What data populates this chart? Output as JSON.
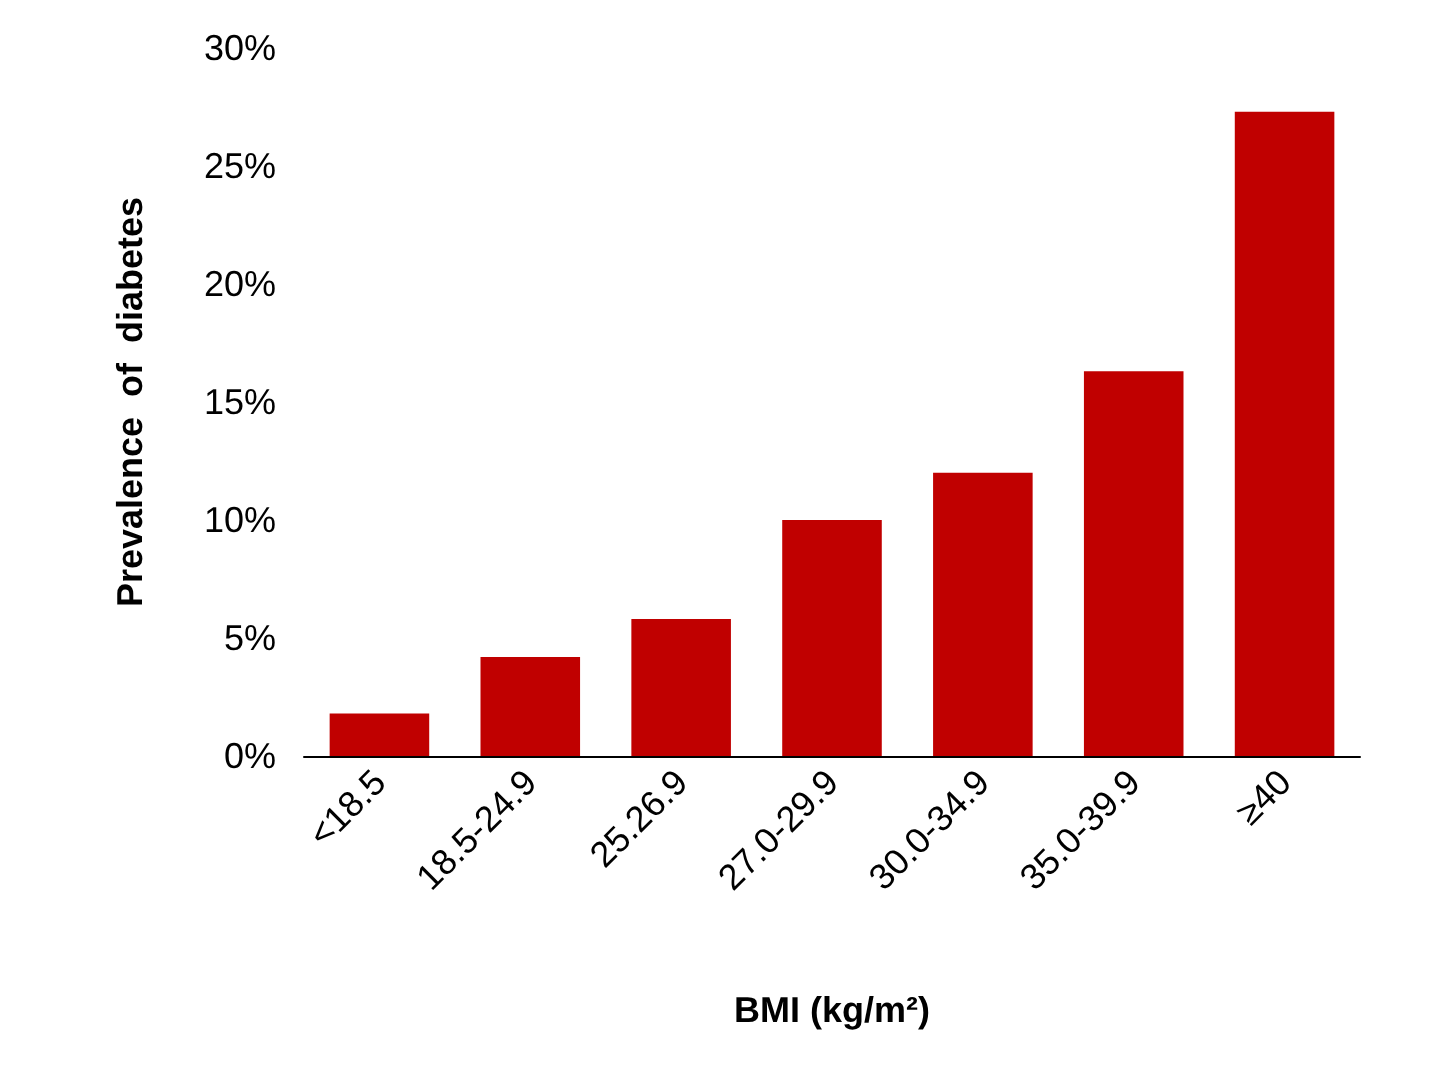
{
  "chart_data": {
    "type": "bar",
    "xlabel": "BMI (kg/m²)",
    "ylabel": "Prevalence  of  diabetes",
    "categories": [
      "<18.5",
      "18.5-24.9",
      "25.26.9",
      "27.0-29.9",
      "30.0-34.9",
      "35.0-39.9",
      "≥40"
    ],
    "values": [
      1.8,
      4.2,
      5.8,
      10.0,
      12.0,
      16.3,
      27.3
    ],
    "color": "#c00000",
    "ylim": [
      0,
      30
    ],
    "yticks": [
      {
        "value": 0,
        "label": "0%"
      },
      {
        "value": 5,
        "label": "5%"
      },
      {
        "value": 10,
        "label": "10%"
      },
      {
        "value": 15,
        "label": "15%"
      },
      {
        "value": 20,
        "label": "20%"
      },
      {
        "value": 25,
        "label": "25%"
      },
      {
        "value": 30,
        "label": "30%"
      }
    ],
    "grid": false
  }
}
